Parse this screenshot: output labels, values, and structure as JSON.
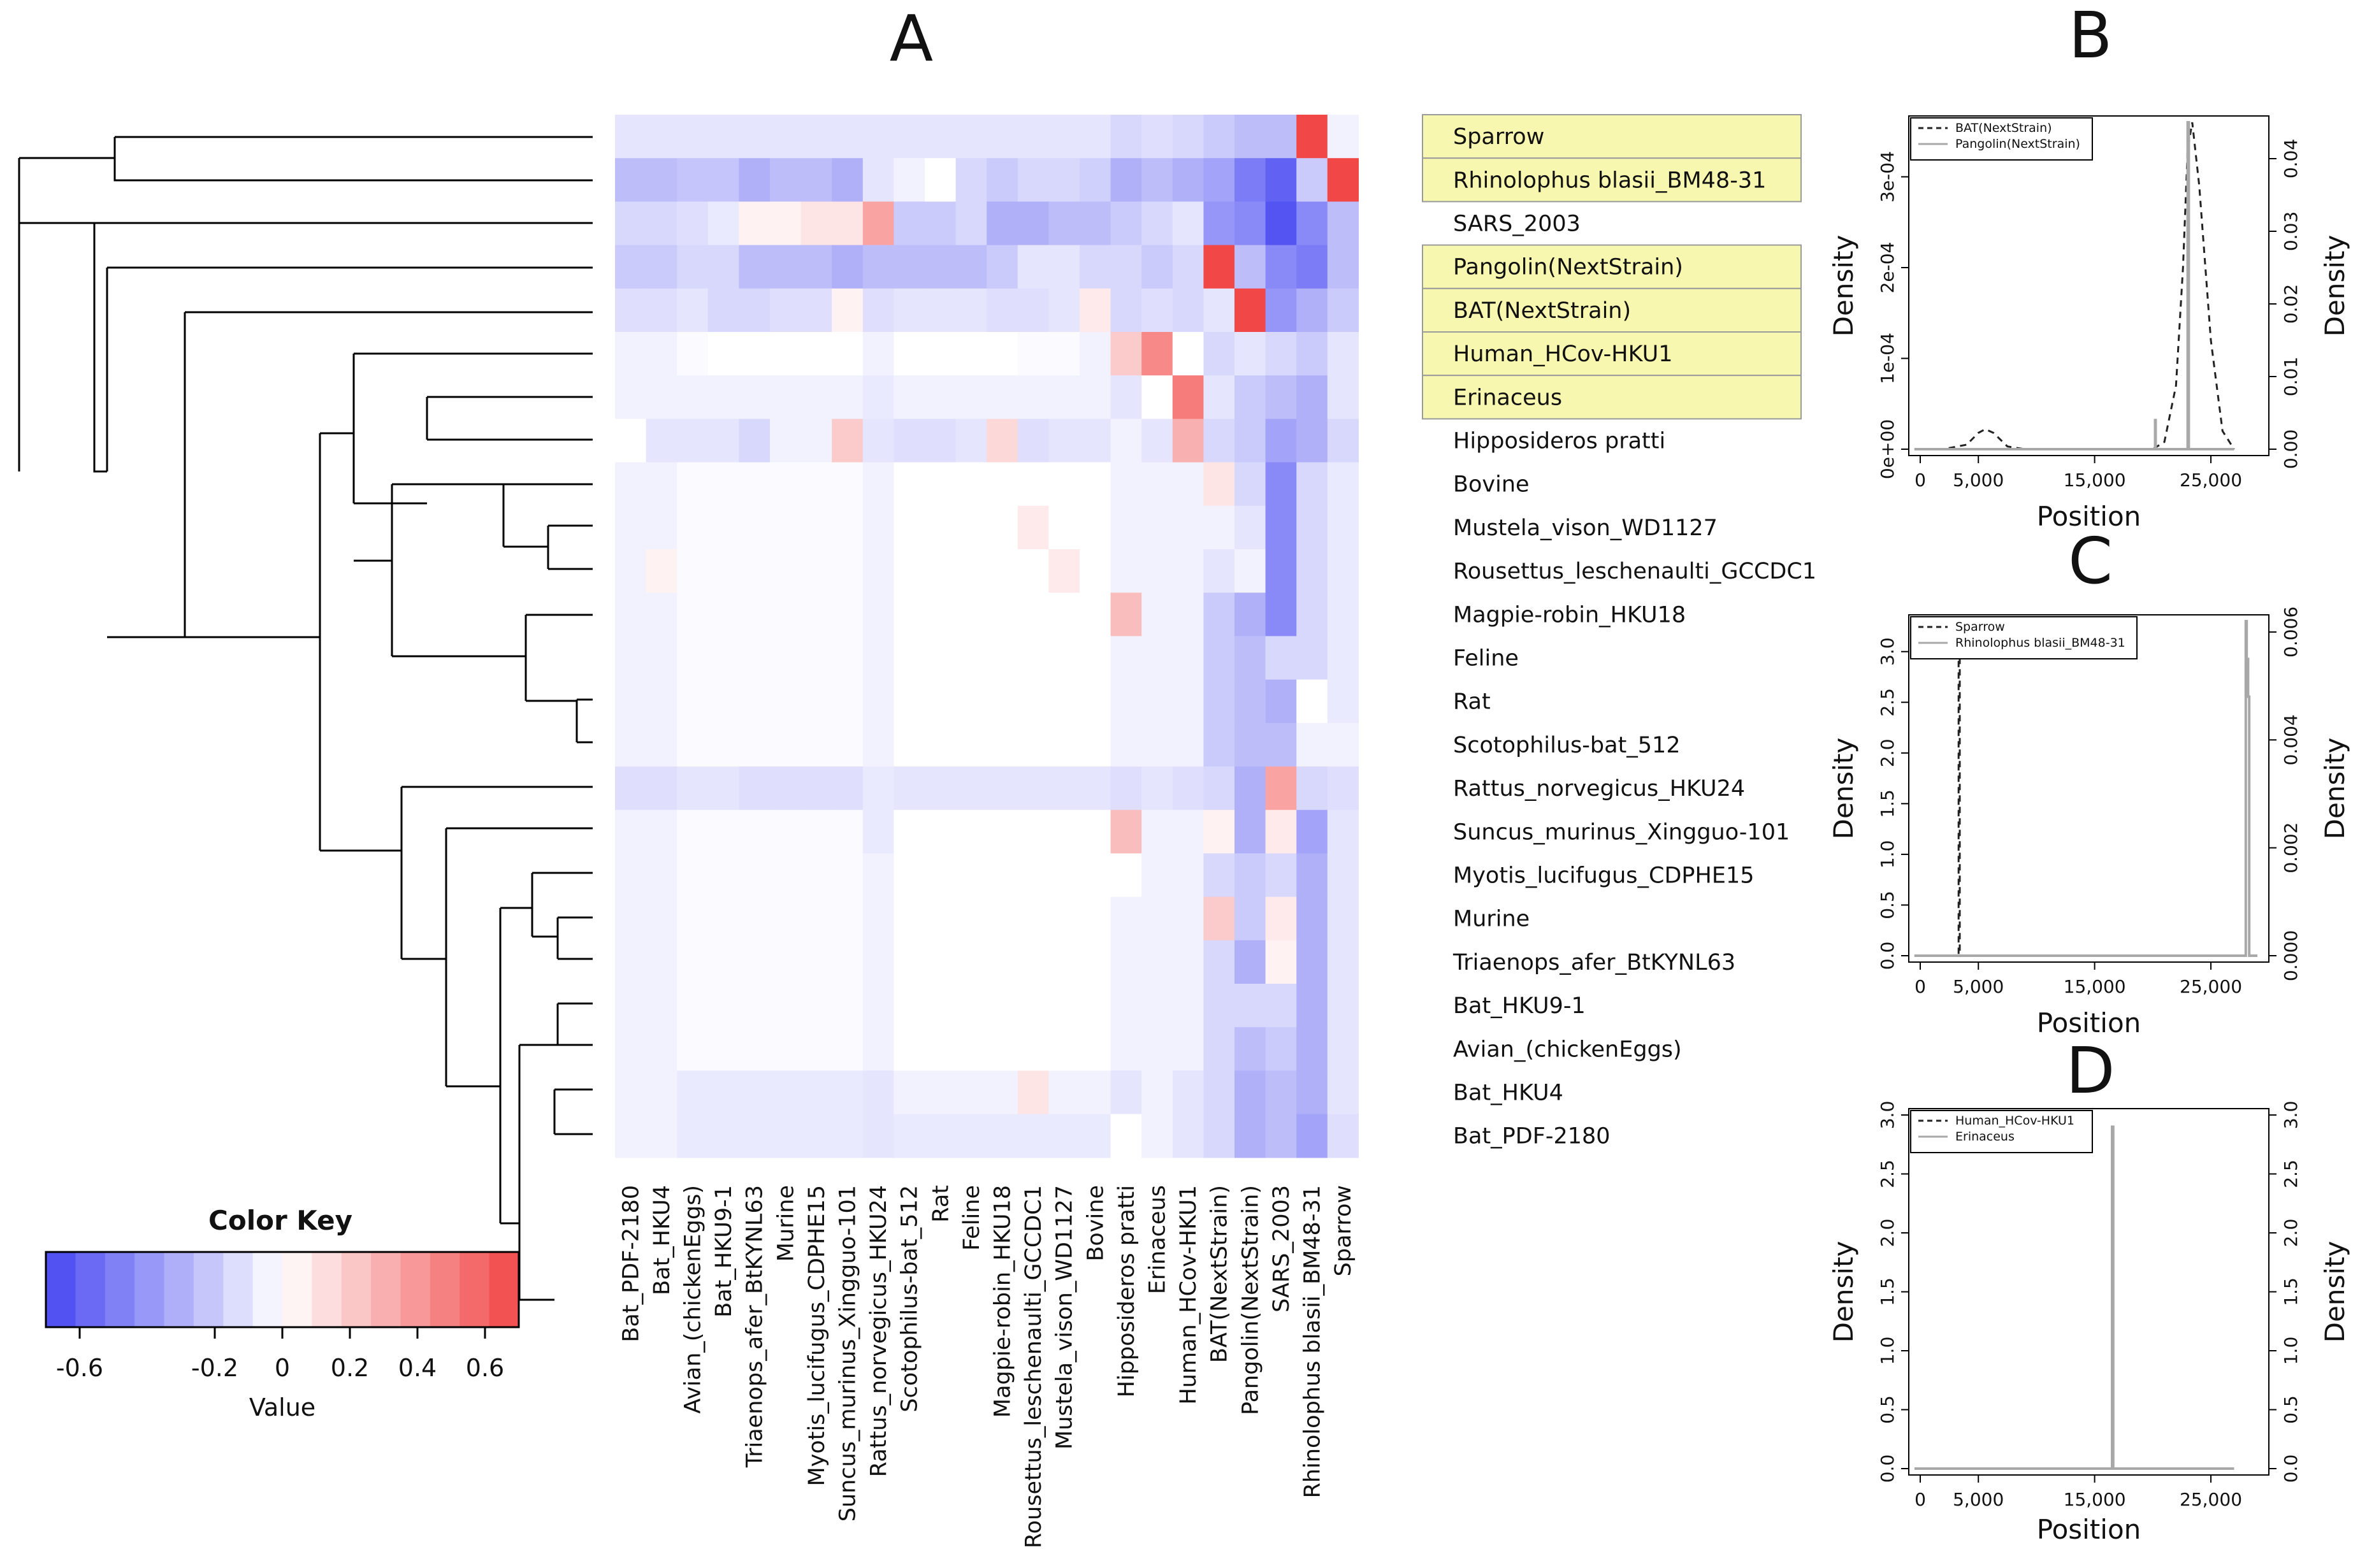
{
  "panel_labels": {
    "A": "A",
    "B": "B",
    "C": "C",
    "D": "D"
  },
  "chart_data": [
    {
      "type": "heatmap",
      "panel": "A",
      "title": "A",
      "rows": [
        "Sparrow",
        "Rhinolophus blasii_BM48-31",
        "SARS_2003",
        "Pangolin(NextStrain)",
        "BAT(NextStrain)",
        "Human_HCov-HKU1",
        "Erinaceus",
        "Hipposideros pratti",
        "Bovine",
        "Mustela_vison_WD1127",
        "Rousettus_leschenaulti_GCCDC1",
        "Magpie-robin_HKU18",
        "Feline",
        "Rat",
        "Scotophilus-bat_512",
        "Rattus_norvegicus_HKU24",
        "Suncus_murinus_Xingguo-101",
        "Myotis_lucifugus_CDPHE15",
        "Murine",
        "Triaenops_afer_BtKYNL63",
        "Bat_HKU9-1",
        "Avian_(chickenEggs)",
        "Bat_HKU4",
        "Bat_PDF-2180"
      ],
      "columns": [
        "Bat_PDF-2180",
        "Bat_HKU4",
        "Avian_(chickenEggs)",
        "Bat_HKU9-1",
        "Triaenops_afer_BtKYNL63",
        "Murine",
        "Myotis_lucifugus_CDPHE15",
        "Suncus_murinus_Xingguo-101",
        "Rattus_norvegicus_HKU24",
        "Scotophilus-bat_512",
        "Rat",
        "Feline",
        "Magpie-robin_HKU18",
        "Rousettus_leschenaulti_GCCDC1",
        "Mustela_vison_WD1127",
        "Bovine",
        "Hipposideros pratti",
        "Erinaceus",
        "Human_HCov-HKU1",
        "BAT(NextStrain)",
        "Pangolin(NextStrain)",
        "SARS_2003",
        "Rhinolophus blasii_BM48-31",
        "Sparrow"
      ],
      "highlighted_rows": [
        "Sparrow",
        "Rhinolophus blasii_BM48-31",
        "Pangolin(NextStrain)",
        "BAT(NextStrain)",
        "Human_HCov-HKU1",
        "Erinaceus"
      ],
      "highlight_color": "#f7f7b0",
      "values": [
        [
          -0.1,
          -0.1,
          -0.1,
          -0.1,
          -0.1,
          -0.1,
          -0.1,
          -0.1,
          -0.1,
          -0.1,
          -0.1,
          -0.1,
          -0.1,
          -0.1,
          -0.1,
          -0.1,
          -0.15,
          -0.12,
          -0.15,
          -0.2,
          -0.25,
          -0.25,
          0.7,
          -0.05
        ],
        [
          -0.25,
          -0.25,
          -0.22,
          -0.22,
          -0.3,
          -0.25,
          -0.25,
          -0.3,
          -0.1,
          -0.05,
          0.0,
          -0.15,
          -0.2,
          -0.15,
          -0.15,
          -0.18,
          -0.3,
          -0.25,
          -0.3,
          -0.35,
          -0.5,
          -0.6,
          -0.2,
          0.7
        ],
        [
          -0.15,
          -0.15,
          -0.12,
          -0.08,
          0.05,
          0.05,
          0.1,
          0.1,
          0.35,
          -0.2,
          -0.2,
          -0.15,
          -0.3,
          -0.3,
          -0.25,
          -0.25,
          -0.2,
          -0.15,
          -0.1,
          -0.4,
          -0.45,
          -0.65,
          -0.45,
          -0.25
        ],
        [
          -0.2,
          -0.2,
          -0.15,
          -0.15,
          -0.25,
          -0.25,
          -0.25,
          -0.3,
          -0.25,
          -0.25,
          -0.25,
          -0.25,
          -0.2,
          -0.1,
          -0.1,
          -0.15,
          -0.15,
          -0.2,
          -0.15,
          0.7,
          -0.25,
          -0.45,
          -0.5,
          -0.25
        ],
        [
          -0.12,
          -0.12,
          -0.1,
          -0.15,
          -0.15,
          -0.12,
          -0.12,
          0.05,
          -0.12,
          -0.1,
          -0.1,
          -0.1,
          -0.12,
          -0.12,
          -0.1,
          0.08,
          -0.15,
          -0.12,
          -0.15,
          -0.1,
          0.7,
          -0.4,
          -0.3,
          -0.2
        ],
        [
          -0.05,
          -0.05,
          -0.02,
          0.0,
          0.0,
          0.0,
          0.0,
          0.0,
          -0.05,
          0.0,
          0.0,
          0.0,
          0.0,
          -0.02,
          -0.02,
          -0.05,
          0.2,
          0.45,
          0.0,
          -0.15,
          -0.1,
          -0.15,
          -0.2,
          -0.1
        ],
        [
          -0.05,
          -0.05,
          -0.05,
          -0.05,
          -0.05,
          -0.05,
          -0.05,
          -0.05,
          -0.08,
          -0.05,
          -0.05,
          -0.05,
          -0.05,
          -0.05,
          -0.05,
          -0.05,
          -0.1,
          0.0,
          0.5,
          -0.1,
          -0.2,
          -0.25,
          -0.3,
          -0.1
        ],
        [
          0.0,
          -0.1,
          -0.1,
          -0.1,
          -0.15,
          -0.05,
          -0.05,
          0.2,
          -0.1,
          -0.12,
          -0.12,
          -0.1,
          0.15,
          -0.12,
          -0.1,
          -0.1,
          -0.05,
          -0.1,
          0.3,
          -0.15,
          -0.2,
          -0.35,
          -0.3,
          -0.15
        ],
        [
          -0.05,
          -0.05,
          -0.02,
          -0.02,
          -0.02,
          -0.02,
          -0.02,
          -0.02,
          -0.05,
          0.0,
          0.0,
          0.0,
          0.0,
          0.0,
          0.0,
          0.0,
          -0.05,
          -0.05,
          -0.05,
          0.1,
          -0.15,
          -0.45,
          -0.15,
          -0.08
        ],
        [
          -0.05,
          -0.05,
          -0.02,
          -0.02,
          -0.02,
          -0.02,
          -0.02,
          -0.02,
          -0.05,
          0.0,
          0.0,
          0.0,
          0.0,
          0.08,
          0.0,
          0.0,
          -0.05,
          -0.05,
          -0.05,
          -0.05,
          -0.1,
          -0.45,
          -0.15,
          -0.08
        ],
        [
          -0.05,
          0.05,
          -0.02,
          -0.02,
          -0.02,
          -0.02,
          -0.02,
          -0.02,
          -0.05,
          0.0,
          0.0,
          0.0,
          0.0,
          0.0,
          0.08,
          0.0,
          -0.05,
          -0.05,
          -0.05,
          -0.1,
          -0.05,
          -0.45,
          -0.15,
          -0.08
        ],
        [
          -0.05,
          -0.05,
          -0.02,
          -0.02,
          -0.02,
          -0.02,
          -0.02,
          -0.02,
          -0.05,
          0.0,
          0.0,
          0.0,
          0.0,
          0.0,
          0.0,
          0.0,
          0.25,
          -0.05,
          -0.05,
          -0.2,
          -0.3,
          -0.45,
          -0.15,
          -0.08
        ],
        [
          -0.05,
          -0.05,
          -0.02,
          -0.02,
          -0.02,
          -0.02,
          -0.02,
          -0.02,
          -0.05,
          0.0,
          0.0,
          0.0,
          0.0,
          0.0,
          0.0,
          0.0,
          -0.05,
          -0.05,
          -0.05,
          -0.2,
          -0.25,
          -0.15,
          -0.15,
          -0.08
        ],
        [
          -0.05,
          -0.05,
          -0.02,
          -0.02,
          -0.02,
          -0.02,
          -0.02,
          -0.02,
          -0.05,
          0.0,
          0.0,
          0.0,
          0.0,
          0.0,
          0.0,
          0.0,
          -0.05,
          -0.05,
          -0.05,
          -0.2,
          -0.25,
          -0.3,
          0.0,
          -0.08
        ],
        [
          -0.05,
          -0.05,
          -0.02,
          -0.02,
          -0.02,
          -0.02,
          -0.02,
          -0.02,
          -0.05,
          0.0,
          0.0,
          0.0,
          0.0,
          0.0,
          0.0,
          0.0,
          -0.05,
          -0.05,
          -0.05,
          -0.2,
          -0.25,
          -0.25,
          -0.05,
          -0.05
        ],
        [
          -0.12,
          -0.12,
          -0.1,
          -0.1,
          -0.12,
          -0.12,
          -0.12,
          -0.12,
          -0.08,
          -0.1,
          -0.1,
          -0.1,
          -0.1,
          -0.1,
          -0.1,
          -0.1,
          -0.12,
          -0.1,
          -0.12,
          -0.15,
          -0.3,
          0.35,
          -0.15,
          -0.12
        ],
        [
          -0.05,
          -0.05,
          -0.02,
          -0.02,
          -0.02,
          -0.02,
          -0.02,
          -0.02,
          -0.08,
          0.0,
          0.0,
          0.0,
          0.0,
          0.0,
          0.0,
          0.0,
          0.25,
          -0.05,
          -0.05,
          0.05,
          -0.3,
          0.08,
          -0.35,
          -0.1
        ],
        [
          -0.05,
          -0.05,
          -0.02,
          -0.02,
          -0.02,
          -0.02,
          -0.02,
          -0.02,
          -0.05,
          0.0,
          0.0,
          0.0,
          0.0,
          0.0,
          0.0,
          0.0,
          0.0,
          -0.05,
          -0.05,
          -0.15,
          -0.2,
          -0.15,
          -0.3,
          -0.1
        ],
        [
          -0.05,
          -0.05,
          -0.02,
          -0.02,
          -0.02,
          -0.02,
          -0.02,
          -0.02,
          -0.05,
          0.0,
          0.0,
          0.0,
          0.0,
          0.0,
          0.0,
          0.0,
          -0.05,
          -0.05,
          -0.05,
          0.2,
          -0.2,
          0.08,
          -0.3,
          -0.1
        ],
        [
          -0.05,
          -0.05,
          -0.02,
          -0.02,
          -0.02,
          -0.02,
          -0.02,
          -0.02,
          -0.05,
          0.0,
          0.0,
          0.0,
          0.0,
          0.0,
          0.0,
          0.0,
          -0.05,
          -0.05,
          -0.05,
          -0.15,
          -0.3,
          0.05,
          -0.3,
          -0.1
        ],
        [
          -0.05,
          -0.05,
          -0.02,
          -0.02,
          -0.02,
          -0.02,
          -0.02,
          -0.02,
          -0.05,
          0.0,
          0.0,
          0.0,
          0.0,
          0.0,
          0.0,
          0.0,
          -0.05,
          -0.05,
          -0.05,
          -0.15,
          -0.15,
          -0.15,
          -0.3,
          -0.1
        ],
        [
          -0.05,
          -0.05,
          -0.02,
          -0.02,
          -0.02,
          -0.02,
          -0.02,
          -0.02,
          -0.05,
          0.0,
          0.0,
          0.0,
          0.0,
          0.0,
          0.0,
          0.0,
          -0.05,
          -0.05,
          -0.05,
          -0.15,
          -0.25,
          -0.2,
          -0.3,
          -0.1
        ],
        [
          -0.05,
          -0.05,
          -0.08,
          -0.08,
          -0.08,
          -0.08,
          -0.08,
          -0.08,
          -0.1,
          -0.05,
          -0.05,
          -0.05,
          -0.05,
          0.1,
          -0.05,
          -0.05,
          -0.1,
          -0.05,
          -0.1,
          -0.15,
          -0.3,
          -0.25,
          -0.3,
          -0.1
        ],
        [
          -0.05,
          -0.05,
          -0.08,
          -0.08,
          -0.08,
          -0.08,
          -0.08,
          -0.08,
          -0.1,
          -0.08,
          -0.08,
          -0.08,
          -0.08,
          -0.08,
          -0.08,
          -0.08,
          0.0,
          -0.05,
          -0.1,
          -0.15,
          -0.3,
          -0.25,
          -0.35,
          -0.12
        ]
      ],
      "color_key": {
        "title": "Color Key",
        "xlabel": "Value",
        "ticks": [
          "-0.6",
          "-0.2",
          "0",
          "0.2",
          "0.4",
          "0.6"
        ],
        "range": [
          -0.7,
          0.7
        ],
        "low_color": "#4747f2",
        "mid_color": "#ffffff",
        "high_color": "#f24747"
      }
    },
    {
      "type": "line",
      "panel": "B",
      "title": "B",
      "xlabel": "Position",
      "ylabel_left": "Density",
      "ylabel_right": "Density",
      "xticks": [
        "0",
        "5,000",
        "15,000",
        "25,000"
      ],
      "yticks_left": [
        "0e+00",
        "1e-04",
        "2e-04",
        "3e-04"
      ],
      "yticks_right": [
        "0.00",
        "0.01",
        "0.02",
        "0.03",
        "0.04"
      ],
      "xlim": [
        0,
        29000
      ],
      "ylim_left": [
        0,
        0.00036
      ],
      "ylim_right": [
        0,
        0.045
      ],
      "legend": [
        "BAT(NextStrain)",
        "Pangolin(NextStrain)"
      ],
      "series": [
        {
          "name": "BAT(NextStrain)",
          "axis": "left",
          "style": "dashed",
          "x": [
            -500,
            2000,
            4000,
            5000,
            5600,
            6300,
            7500,
            9000,
            12000,
            15000,
            18000,
            20000,
            21000,
            22000,
            22600,
            23000,
            23400,
            24000,
            25000,
            26000,
            27000
          ],
          "values": [
            0,
            0,
            5e-06,
            1.8e-05,
            2.2e-05,
            1.8e-05,
            3e-06,
            0,
            0,
            0,
            0,
            0,
            8e-06,
            7e-05,
            0.0002,
            0.00033,
            0.00036,
            0.00029,
            0.00012,
            2e-05,
            0
          ]
        },
        {
          "name": "Pangolin(NextStrain)",
          "axis": "right",
          "style": "solid",
          "x": [
            -500,
            20200,
            20200,
            20250,
            20250,
            23000,
            23000,
            23100,
            23100,
            27000
          ],
          "values": [
            0,
            0,
            0.004,
            0.004,
            0,
            0,
            0.045,
            0.045,
            0,
            0
          ]
        }
      ]
    },
    {
      "type": "line",
      "panel": "C",
      "title": "C",
      "xlabel": "Position",
      "ylabel_left": "Density",
      "ylabel_right": "Density",
      "xticks": [
        "0",
        "5,000",
        "15,000",
        "25,000"
      ],
      "yticks_left": [
        "0.0",
        "0.5",
        "1.0",
        "1.5",
        "2.0",
        "2.5",
        "3.0"
      ],
      "yticks_right": [
        "0.000",
        "0.002",
        "0.004",
        "0.006"
      ],
      "xlim": [
        0,
        29000
      ],
      "ylim_left": [
        0,
        3.3
      ],
      "ylim_right": [
        0,
        0.0062
      ],
      "legend": [
        "Sparrow",
        "Rhinolophus blasii_BM48-31"
      ],
      "series": [
        {
          "name": "Sparrow",
          "axis": "left",
          "style": "dashed",
          "x": [
            -500,
            3300,
            3300,
            3400,
            3400,
            27000
          ],
          "values": [
            0,
            0,
            3.0,
            3.0,
            0,
            0
          ]
        },
        {
          "name": "Rhinolophus blasii_BM48-31",
          "axis": "right",
          "style": "solid",
          "x": [
            -500,
            28000,
            28000,
            28080,
            28080,
            28200,
            28200,
            28300,
            28300,
            29000
          ],
          "values": [
            0,
            0,
            0.0062,
            0.0062,
            0.0055,
            0.0055,
            0.0048,
            0.0048,
            0,
            0
          ]
        }
      ]
    },
    {
      "type": "line",
      "panel": "D",
      "title": "D",
      "xlabel": "Position",
      "ylabel_left": "Density",
      "ylabel_right": "Density",
      "xticks": [
        "0",
        "5,000",
        "15,000",
        "25,000"
      ],
      "yticks_left": [
        "0.0",
        "0.5",
        "1.0",
        "1.5",
        "2.0",
        "2.5",
        "3.0"
      ],
      "yticks_right": [
        "0.0",
        "0.5",
        "1.0",
        "1.5",
        "2.0",
        "2.5",
        "3.0"
      ],
      "xlim": [
        0,
        29000
      ],
      "ylim_left": [
        0,
        3.0
      ],
      "ylim_right": [
        0,
        3.0
      ],
      "legend": [
        "Human_HCov-HKU1",
        "Erinaceus"
      ],
      "series": [
        {
          "name": "Human_HCov-HKU1",
          "axis": "left",
          "style": "dashed",
          "x": [],
          "values": []
        },
        {
          "name": "Erinaceus",
          "axis": "right",
          "style": "solid",
          "x": [
            -500,
            16500,
            16500,
            16600,
            16600,
            27000
          ],
          "values": [
            0,
            0,
            2.9,
            2.9,
            0,
            0
          ]
        }
      ]
    }
  ]
}
